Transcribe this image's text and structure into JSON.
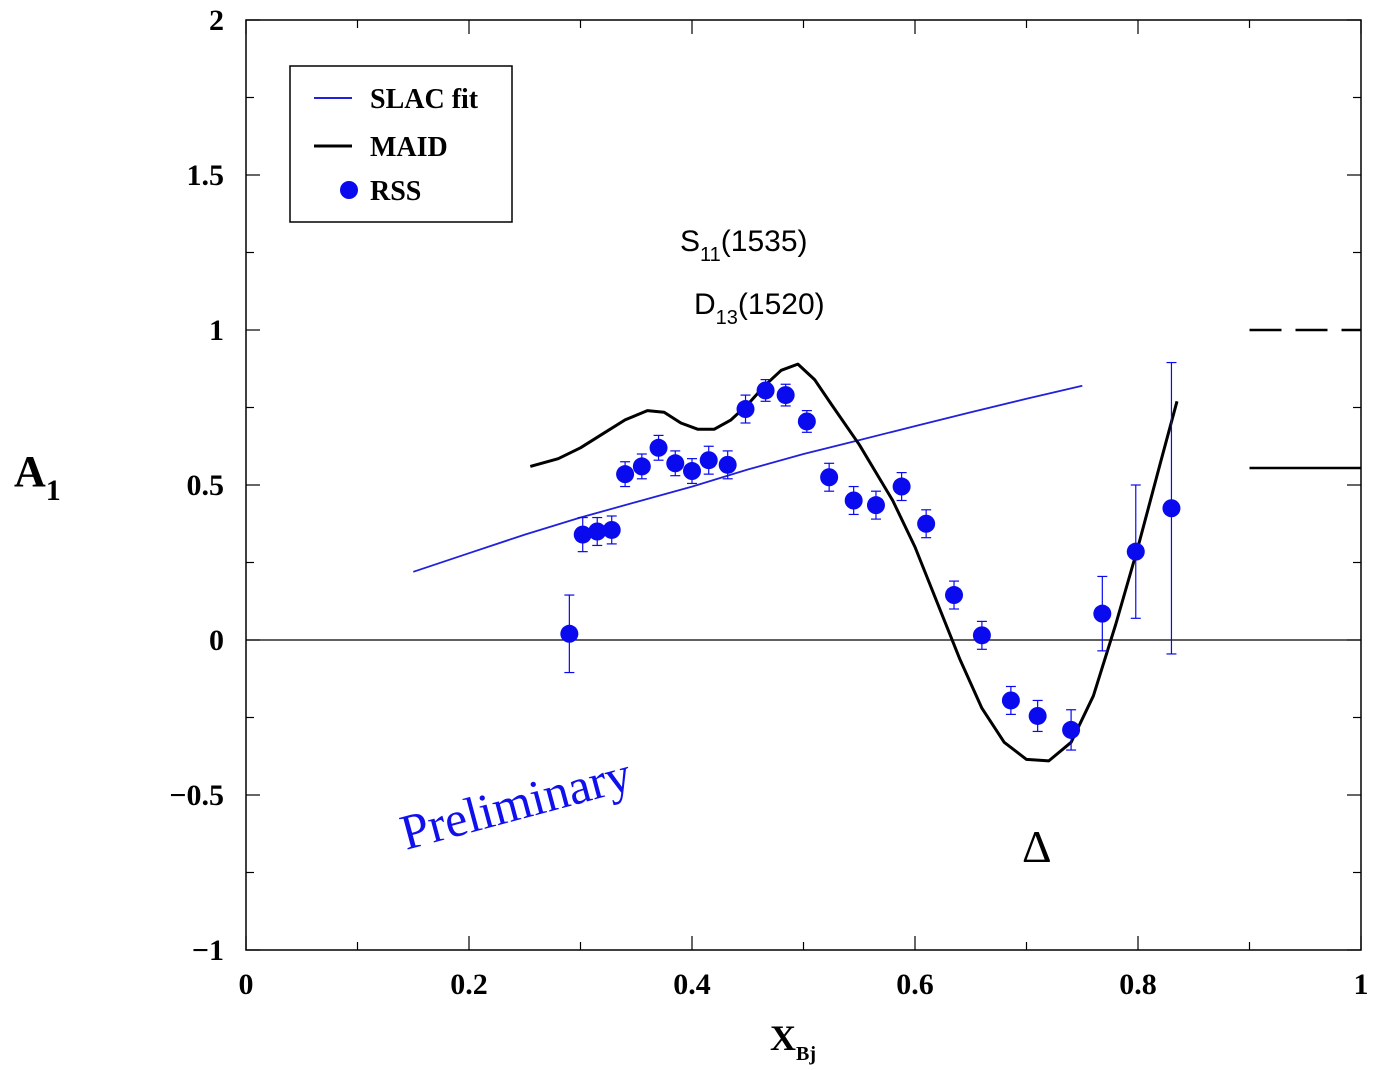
{
  "chart_data": {
    "type": "line",
    "xlabel": "X",
    "xlabel_sub": "Bj",
    "ylabel": "A",
    "ylabel_sub": "1",
    "xlim": [
      0,
      1
    ],
    "ylim": [
      -1,
      2
    ],
    "x_ticks": [
      "0",
      "0.2",
      "0.4",
      "0.6",
      "0.8",
      "1"
    ],
    "y_ticks": [
      "−1",
      "−0.5",
      "0",
      "0.5",
      "1",
      "1.5",
      "2"
    ],
    "x_tick_values": [
      0,
      0.2,
      0.4,
      0.6,
      0.8,
      1
    ],
    "y_tick_values": [
      -1,
      -0.5,
      0,
      0.5,
      1,
      1.5,
      2
    ],
    "grid": false,
    "legend_position": "top-left",
    "colors": {
      "slac": "#2020dd",
      "maid": "#000000",
      "rss": "#0a0aee"
    },
    "series": [
      {
        "name": "SLAC fit",
        "kind": "line",
        "x": [
          0.15,
          0.2,
          0.25,
          0.3,
          0.35,
          0.4,
          0.45,
          0.5,
          0.55,
          0.6,
          0.65,
          0.7,
          0.75
        ],
        "y": [
          0.22,
          0.28,
          0.34,
          0.395,
          0.445,
          0.495,
          0.55,
          0.6,
          0.645,
          0.69,
          0.735,
          0.778,
          0.82
        ]
      },
      {
        "name": "MAID",
        "kind": "line",
        "x": [
          0.255,
          0.28,
          0.3,
          0.32,
          0.34,
          0.36,
          0.375,
          0.39,
          0.405,
          0.42,
          0.435,
          0.45,
          0.465,
          0.48,
          0.495,
          0.51,
          0.525,
          0.55,
          0.58,
          0.6,
          0.62,
          0.64,
          0.66,
          0.68,
          0.7,
          0.72,
          0.74,
          0.76,
          0.78,
          0.8,
          0.82,
          0.835
        ],
        "y": [
          0.56,
          0.585,
          0.62,
          0.665,
          0.71,
          0.74,
          0.735,
          0.7,
          0.68,
          0.68,
          0.71,
          0.76,
          0.82,
          0.87,
          0.89,
          0.84,
          0.76,
          0.63,
          0.45,
          0.3,
          0.12,
          -0.06,
          -0.22,
          -0.33,
          -0.385,
          -0.39,
          -0.33,
          -0.18,
          0.05,
          0.3,
          0.57,
          0.77
        ]
      },
      {
        "name": "RSS",
        "kind": "points",
        "x": [
          0.29,
          0.302,
          0.315,
          0.328,
          0.34,
          0.355,
          0.37,
          0.385,
          0.4,
          0.415,
          0.432,
          0.448,
          0.466,
          0.484,
          0.503,
          0.523,
          0.545,
          0.565,
          0.588,
          0.61,
          0.635,
          0.66,
          0.686,
          0.71,
          0.74,
          0.768,
          0.798,
          0.83
        ],
        "y": [
          0.02,
          0.34,
          0.35,
          0.355,
          0.535,
          0.56,
          0.62,
          0.57,
          0.545,
          0.58,
          0.565,
          0.745,
          0.805,
          0.79,
          0.705,
          0.525,
          0.45,
          0.435,
          0.495,
          0.375,
          0.145,
          0.015,
          -0.195,
          -0.245,
          -0.29,
          0.085,
          0.285,
          0.425
        ],
        "err": [
          0.125,
          0.055,
          0.045,
          0.045,
          0.04,
          0.04,
          0.04,
          0.04,
          0.04,
          0.045,
          0.045,
          0.045,
          0.035,
          0.035,
          0.035,
          0.045,
          0.045,
          0.045,
          0.045,
          0.045,
          0.045,
          0.045,
          0.045,
          0.05,
          0.065,
          0.12,
          0.215,
          0.47
        ]
      }
    ],
    "side_marks": [
      {
        "style": "dashed",
        "y": 1.0,
        "x": [
          0.9,
          1.0
        ]
      },
      {
        "style": "solid",
        "y": 0.555,
        "x": [
          0.9,
          1.0
        ]
      }
    ],
    "annotations": {
      "s11_main": "S",
      "s11_sub": "11",
      "s11_rest": "(1535)",
      "d13_main": "D",
      "d13_sub": "13",
      "d13_rest": "(1520)",
      "preliminary": "Preliminary",
      "delta": "Δ"
    },
    "legend": [
      "SLAC fit",
      "MAID",
      "RSS"
    ]
  }
}
